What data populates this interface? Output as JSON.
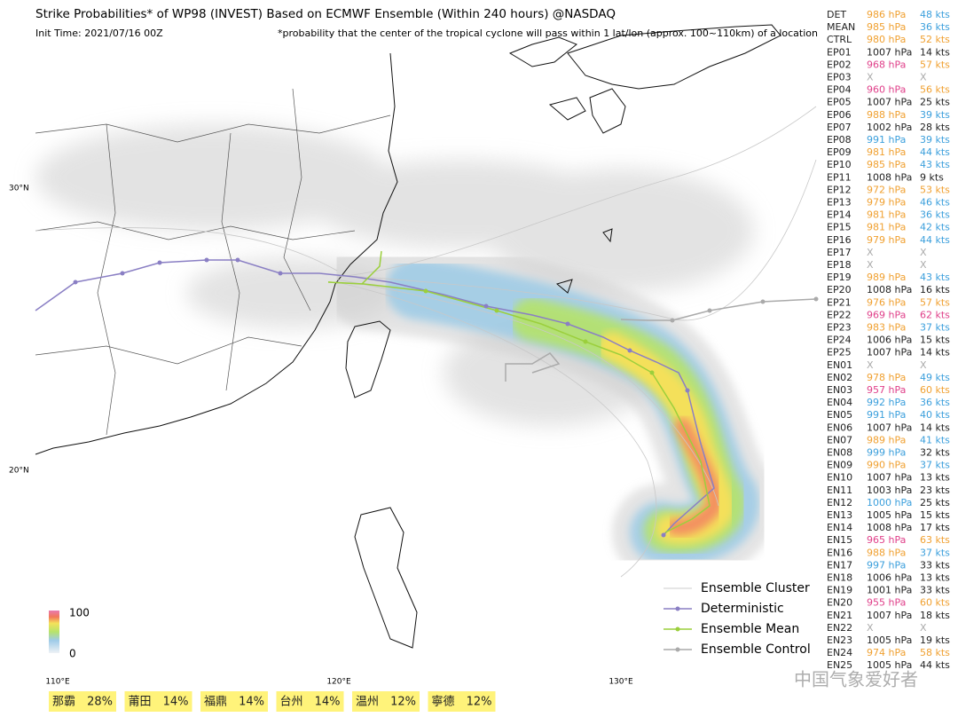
{
  "header": {
    "title": "Strike Probabilities* of WP98 (INVEST) Based on ECMWF Ensemble (Within 240 hours) @NASDAQ",
    "init_time": "Init Time: 2021/07/16 00Z",
    "note": "*probability that the center of the tropical cyclone will pass within 1 lat/lon (approx. 100~110km) of a location"
  },
  "axes": {
    "lat": [
      "30°N",
      "20°N"
    ],
    "lon": [
      "110°E",
      "120°E",
      "130°E"
    ]
  },
  "colorbar": {
    "max": "100",
    "min": "0"
  },
  "legend": [
    "Ensemble Cluster",
    "Deterministic",
    "Ensemble Mean",
    "Ensemble Control"
  ],
  "table": {
    "rows": [
      [
        "DET",
        "986 hPa",
        "48 kts",
        "#f0a030",
        "#3b9fdc"
      ],
      [
        "MEAN",
        "985 hPa",
        "36 kts",
        "#f0a030",
        "#3b9fdc"
      ],
      [
        "CTRL",
        "980 hPa",
        "52 kts",
        "#f0a030",
        "#f0a030"
      ],
      [
        "EP01",
        "1007 hPa",
        "14 kts",
        "#222222",
        "#222222"
      ],
      [
        "EP02",
        "968 hPa",
        "57 kts",
        "#e0408a",
        "#f0a030"
      ],
      [
        "EP03",
        "X",
        "X",
        "#aaaaaa",
        "#aaaaaa"
      ],
      [
        "EP04",
        "960 hPa",
        "56 kts",
        "#e0408a",
        "#f0a030"
      ],
      [
        "EP05",
        "1007 hPa",
        "25 kts",
        "#222222",
        "#222222"
      ],
      [
        "EP06",
        "988 hPa",
        "39 kts",
        "#f0a030",
        "#3b9fdc"
      ],
      [
        "EP07",
        "1002 hPa",
        "28 kts",
        "#222222",
        "#222222"
      ],
      [
        "EP08",
        "991 hPa",
        "39 kts",
        "#3b9fdc",
        "#3b9fdc"
      ],
      [
        "EP09",
        "981 hPa",
        "44 kts",
        "#f0a030",
        "#3b9fdc"
      ],
      [
        "EP10",
        "985 hPa",
        "43 kts",
        "#f0a030",
        "#3b9fdc"
      ],
      [
        "EP11",
        "1008 hPa",
        "9 kts",
        "#222222",
        "#222222"
      ],
      [
        "EP12",
        "972 hPa",
        "53 kts",
        "#f0a030",
        "#f0a030"
      ],
      [
        "EP13",
        "979 hPa",
        "46 kts",
        "#f0a030",
        "#3b9fdc"
      ],
      [
        "EP14",
        "981 hPa",
        "36 kts",
        "#f0a030",
        "#3b9fdc"
      ],
      [
        "EP15",
        "981 hPa",
        "42 kts",
        "#f0a030",
        "#3b9fdc"
      ],
      [
        "EP16",
        "979 hPa",
        "44 kts",
        "#f0a030",
        "#3b9fdc"
      ],
      [
        "EP17",
        "X",
        "X",
        "#aaaaaa",
        "#aaaaaa"
      ],
      [
        "EP18",
        "X",
        "X",
        "#aaaaaa",
        "#aaaaaa"
      ],
      [
        "EP19",
        "989 hPa",
        "43 kts",
        "#f0a030",
        "#3b9fdc"
      ],
      [
        "EP20",
        "1008 hPa",
        "16 kts",
        "#222222",
        "#222222"
      ],
      [
        "EP21",
        "976 hPa",
        "57 kts",
        "#f0a030",
        "#f0a030"
      ],
      [
        "EP22",
        "969 hPa",
        "62 kts",
        "#e0408a",
        "#e0408a"
      ],
      [
        "EP23",
        "983 hPa",
        "37 kts",
        "#f0a030",
        "#3b9fdc"
      ],
      [
        "EP24",
        "1006 hPa",
        "15 kts",
        "#222222",
        "#222222"
      ],
      [
        "EP25",
        "1007 hPa",
        "14 kts",
        "#222222",
        "#222222"
      ],
      [
        "EN01",
        "X",
        "X",
        "#aaaaaa",
        "#aaaaaa"
      ],
      [
        "EN02",
        "978 hPa",
        "49 kts",
        "#f0a030",
        "#3b9fdc"
      ],
      [
        "EN03",
        "957 hPa",
        "60 kts",
        "#e0408a",
        "#f0a030"
      ],
      [
        "EN04",
        "992 hPa",
        "36 kts",
        "#3b9fdc",
        "#3b9fdc"
      ],
      [
        "EN05",
        "991 hPa",
        "40 kts",
        "#3b9fdc",
        "#3b9fdc"
      ],
      [
        "EN06",
        "1007 hPa",
        "14 kts",
        "#222222",
        "#222222"
      ],
      [
        "EN07",
        "989 hPa",
        "41 kts",
        "#f0a030",
        "#3b9fdc"
      ],
      [
        "EN08",
        "999 hPa",
        "32 kts",
        "#3b9fdc",
        "#222222"
      ],
      [
        "EN09",
        "990 hPa",
        "37 kts",
        "#f0a030",
        "#3b9fdc"
      ],
      [
        "EN10",
        "1007 hPa",
        "13 kts",
        "#222222",
        "#222222"
      ],
      [
        "EN11",
        "1003 hPa",
        "23 kts",
        "#222222",
        "#222222"
      ],
      [
        "EN12",
        "1000 hPa",
        "25 kts",
        "#3b9fdc",
        "#222222"
      ],
      [
        "EN13",
        "1005 hPa",
        "15 kts",
        "#222222",
        "#222222"
      ],
      [
        "EN14",
        "1008 hPa",
        "17 kts",
        "#222222",
        "#222222"
      ],
      [
        "EN15",
        "965 hPa",
        "63 kts",
        "#e0408a",
        "#f0a030"
      ],
      [
        "EN16",
        "988 hPa",
        "37 kts",
        "#f0a030",
        "#3b9fdc"
      ],
      [
        "EN17",
        "997 hPa",
        "33 kts",
        "#3b9fdc",
        "#222222"
      ],
      [
        "EN18",
        "1006 hPa",
        "13 kts",
        "#222222",
        "#222222"
      ],
      [
        "EN19",
        "1001 hPa",
        "33 kts",
        "#222222",
        "#222222"
      ],
      [
        "EN20",
        "955 hPa",
        "60 kts",
        "#e0408a",
        "#f0a030"
      ],
      [
        "EN21",
        "1007 hPa",
        "18 kts",
        "#222222",
        "#222222"
      ],
      [
        "EN22",
        "X",
        "X",
        "#aaaaaa",
        "#aaaaaa"
      ],
      [
        "EN23",
        "1005 hPa",
        "19 kts",
        "#222222",
        "#222222"
      ],
      [
        "EN24",
        "974 hPa",
        "58 kts",
        "#f0a030",
        "#f0a030"
      ],
      [
        "EN25",
        "1005 hPa",
        "44 kts",
        "#222222",
        "#222222"
      ]
    ]
  },
  "cities": [
    [
      "那霸",
      "28%"
    ],
    [
      "莆田",
      "14%"
    ],
    [
      "福鼎",
      "14%"
    ],
    [
      "台州",
      "14%"
    ],
    [
      "温州",
      "12%"
    ],
    [
      "寧德",
      "12%"
    ]
  ],
  "watermark": "中国气象爱好者"
}
